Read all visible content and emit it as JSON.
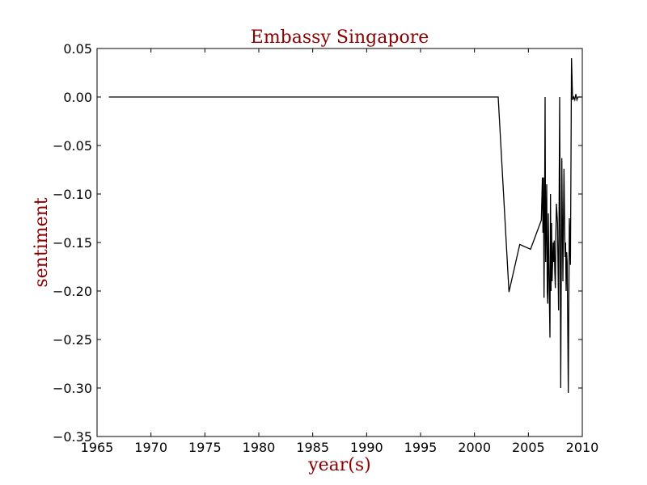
{
  "chart_data": {
    "type": "line",
    "title": "Embassy Singapore",
    "xlabel": "year(s)",
    "ylabel": "sentiment",
    "xlim": [
      1965,
      2010
    ],
    "ylim": [
      -0.35,
      0.05
    ],
    "xticks": [
      1965,
      1970,
      1975,
      1980,
      1985,
      1990,
      1995,
      2000,
      2005,
      2010
    ],
    "xtick_labels": [
      "1965",
      "1970",
      "1975",
      "1980",
      "1985",
      "1990",
      "1995",
      "2000",
      "2005",
      "2010"
    ],
    "yticks": [
      0.05,
      0.0,
      -0.05,
      -0.1,
      -0.15,
      -0.2,
      -0.25,
      -0.3,
      -0.35
    ],
    "ytick_labels": [
      "0.05",
      "0.00",
      "−0.05",
      "−0.10",
      "−0.15",
      "−0.20",
      "−0.25",
      "−0.30",
      "−0.35"
    ],
    "grid": false,
    "line_color": "#000000",
    "text_color": "#8b0000",
    "series": [
      {
        "x": [
          1966.1,
          2002.2,
          2003.2,
          2004.2,
          2005.2,
          2006.2,
          2006.3,
          2006.35,
          2006.4,
          2006.45,
          2006.5,
          2006.55,
          2006.6,
          2006.7,
          2006.75,
          2006.8,
          2006.85,
          2006.9,
          2006.95,
          2007.0,
          2007.05,
          2007.1,
          2007.15,
          2007.2,
          2007.3,
          2007.35,
          2007.4,
          2007.45,
          2007.5,
          2007.55,
          2007.6,
          2007.7,
          2007.8,
          2007.9,
          2008.0,
          2008.1,
          2008.2,
          2008.3,
          2008.35,
          2008.4,
          2008.45,
          2008.5,
          2008.55,
          2008.6,
          2008.7,
          2008.8,
          2008.9,
          2009.0,
          2009.1,
          2009.2,
          2009.3,
          2009.4,
          2009.5,
          2009.6,
          2009.7,
          2009.8,
          2009.85,
          2009.9
        ],
        "y": [
          0.0,
          0.0,
          -0.201,
          -0.152,
          -0.157,
          -0.127,
          -0.083,
          -0.14,
          -0.083,
          -0.207,
          -0.12,
          0.0,
          -0.17,
          -0.09,
          -0.2,
          -0.213,
          -0.12,
          -0.17,
          -0.21,
          -0.248,
          -0.1,
          -0.2,
          -0.13,
          -0.19,
          -0.15,
          -0.17,
          -0.148,
          -0.18,
          -0.197,
          -0.14,
          -0.11,
          -0.13,
          -0.22,
          0.0,
          -0.3,
          -0.063,
          -0.19,
          -0.074,
          -0.12,
          -0.165,
          -0.15,
          -0.2,
          -0.16,
          -0.17,
          -0.305,
          -0.125,
          -0.173,
          0.04,
          -0.003,
          0.0,
          -0.003,
          0.003,
          -0.003,
          0.0,
          0.0,
          0.0,
          0.0,
          0.0
        ]
      }
    ]
  }
}
